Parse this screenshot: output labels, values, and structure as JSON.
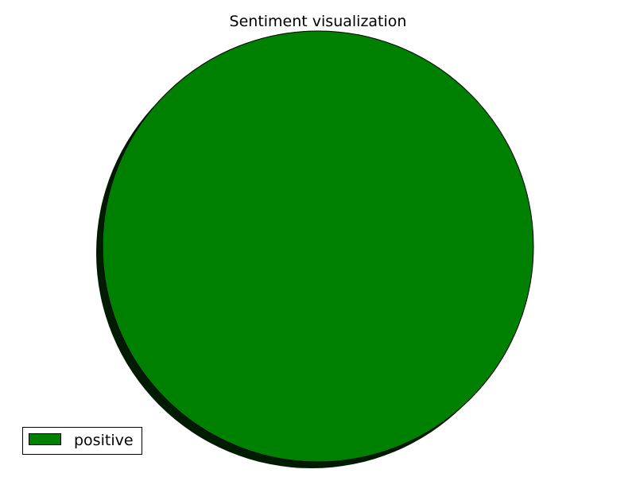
{
  "chart_data": {
    "type": "pie",
    "title": "Sentiment visualization",
    "labels": [
      "positive"
    ],
    "values": [
      100
    ],
    "colors": [
      "#008000"
    ],
    "shadow": true,
    "legend": "lower-left"
  }
}
